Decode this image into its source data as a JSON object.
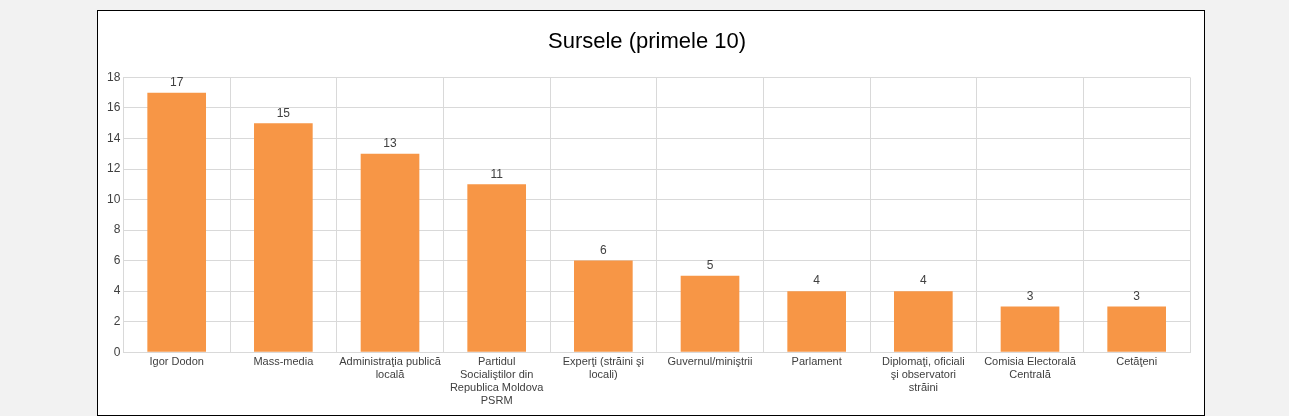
{
  "chart_data": {
    "type": "bar",
    "title": "Sursele (primele 10)",
    "categories": [
      "Igor Dodon",
      "Mass-media",
      "Administraţia publică locală",
      "Partidul Socialiştilor din Republica Moldova PSRM",
      "Experţi (străini şi locali)",
      "Guvernul/miniştrii",
      "Parlament",
      "Diplomaţi, oficiali şi observatori străini",
      "Comisia Electorală Centrală",
      "Cetăţeni"
    ],
    "values": [
      17,
      15,
      13,
      11,
      6,
      5,
      4,
      4,
      3,
      3
    ],
    "color": "#f79646",
    "ylim": [
      0,
      18
    ],
    "yticks": [
      0,
      2,
      4,
      6,
      8,
      10,
      12,
      14,
      16,
      18
    ],
    "grid": true,
    "data_labels": true
  }
}
